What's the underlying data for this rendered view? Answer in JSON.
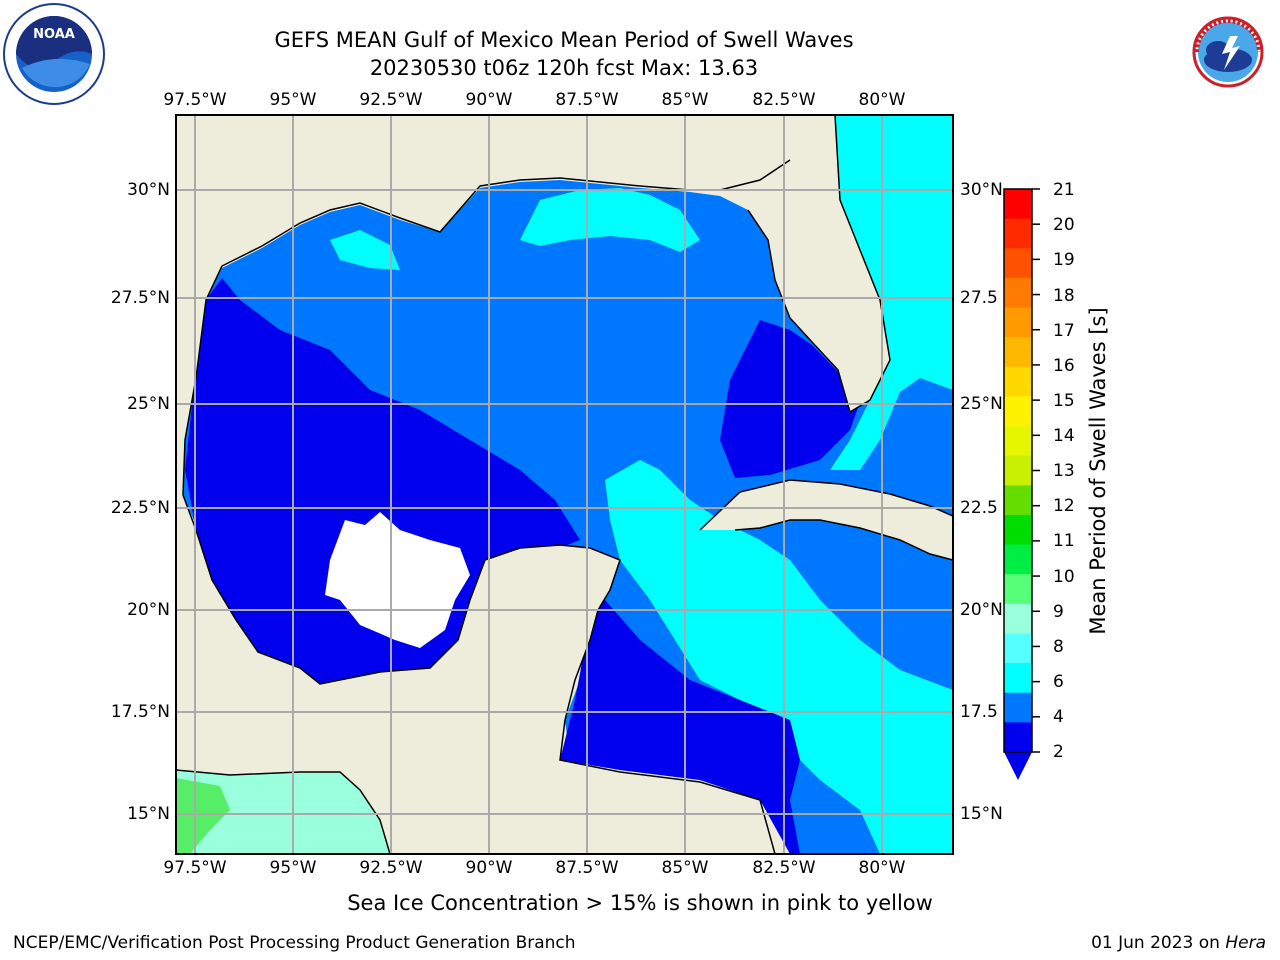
{
  "title": {
    "line1": "GEFS MEAN Gulf of Mexico Mean Period of Swell Waves",
    "line2": "20230530 t06z 120h fcst   Max: 13.63"
  },
  "logos": {
    "left": {
      "name": "noaa-logo",
      "text": "NOAA"
    },
    "right": {
      "name": "nws-logo",
      "text": "NATIONAL WEATHER SERVICE"
    }
  },
  "map": {
    "lon_labels": [
      "97.5°W",
      "95°W",
      "92.5°W",
      "90°W",
      "87.5°W",
      "85°W",
      "82.5°W",
      "80°W"
    ],
    "lat_labels_left": [
      "30°N",
      "27.5°N",
      "25°N",
      "22.5°N",
      "20°N",
      "17.5°N",
      "15°N"
    ],
    "lat_labels_right": [
      "30°N",
      "27.5",
      "25°N",
      "22.5",
      "20°N",
      "17.5",
      "15°N"
    ],
    "colors": {
      "land": "#eeecdb",
      "ocean_dark": "#0000ee",
      "ocean_mid": "#0077ff",
      "ocean_cyan": "#00ffff",
      "ocean_lightcyan": "#66ffff",
      "gridline": "#aaaaaa"
    }
  },
  "colorbar": {
    "title": "Mean Period of Swell Waves [s]",
    "ticks": [
      "21",
      "20",
      "19",
      "18",
      "17",
      "16",
      "15",
      "14",
      "13",
      "12",
      "11",
      "10",
      "9",
      "8",
      "6",
      "4",
      "2"
    ],
    "colors": [
      "#ff0000",
      "#ff2a00",
      "#ff5200",
      "#ff7a00",
      "#ff9a00",
      "#ffb800",
      "#ffd800",
      "#fff200",
      "#e6f500",
      "#c8f000",
      "#66dd00",
      "#00dd00",
      "#00ee44",
      "#55ff77",
      "#99ffdd",
      "#55ffff",
      "#00ffff",
      "#0077ff",
      "#0000ee"
    ]
  },
  "note": "Sea Ice Concentration > 15% is shown in pink to yellow",
  "footer": {
    "left": "NCEP/EMC/Verification Post Processing Product Generation Branch",
    "right_date": "01 Jun 2023 on ",
    "right_system": "Hera"
  }
}
